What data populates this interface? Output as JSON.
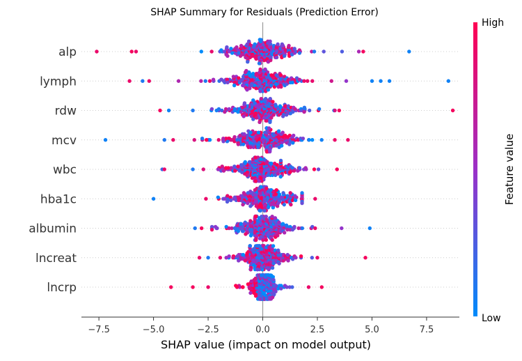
{
  "chart_data": {
    "type": "scatter",
    "subtype": "shap-beeswarm",
    "title": "SHAP Summary for Residuals (Prediction Error)",
    "xlabel": "SHAP value (impact on model output)",
    "xlim": [
      -8.3,
      9.0
    ],
    "x_ticks": [
      -7.5,
      -5.0,
      -2.5,
      0.0,
      2.5,
      5.0,
      7.5
    ],
    "x_tick_labels": [
      "−7.5",
      "−5.0",
      "−2.5",
      "0.0",
      "2.5",
      "5.0",
      "7.5"
    ],
    "features": [
      "alp",
      "lymph",
      "rdw",
      "mcv",
      "wbc",
      "hba1c",
      "albumin",
      "lncreat",
      "lncrp"
    ],
    "colorbar": {
      "label": "Feature value",
      "high_label": "High",
      "low_label": "Low",
      "high_color": "#ff0052",
      "low_color": "#008bfb"
    },
    "feature_profiles": [
      {
        "name": "alp",
        "sigma": 0.95,
        "min": -7.6,
        "max": 6.7,
        "outliers": [
          [
            -7.6,
            0.9
          ],
          [
            -6.0,
            0.95
          ],
          [
            -5.8,
            0.9
          ],
          [
            4.6,
            0.95
          ],
          [
            6.7,
            0.05
          ]
        ]
      },
      {
        "name": "lymph",
        "sigma": 1.0,
        "min": -6.1,
        "max": 8.5,
        "outliers": [
          [
            -6.1,
            0.9
          ],
          [
            -5.5,
            0.1
          ],
          [
            -5.2,
            0.9
          ],
          [
            5.0,
            0.05
          ],
          [
            5.4,
            0.05
          ],
          [
            5.8,
            0.05
          ],
          [
            8.5,
            0.05
          ]
        ]
      },
      {
        "name": "rdw",
        "sigma": 0.95,
        "min": -4.7,
        "max": 8.7,
        "outliers": [
          [
            -4.7,
            0.95
          ],
          [
            -4.3,
            0.05
          ],
          [
            -3.2,
            0.1
          ],
          [
            3.5,
            0.95
          ],
          [
            8.7,
            0.95
          ]
        ]
      },
      {
        "name": "mcv",
        "sigma": 0.95,
        "min": -7.2,
        "max": 3.9,
        "outliers": [
          [
            -7.2,
            0.05
          ],
          [
            -4.5,
            0.1
          ],
          [
            -4.1,
            0.9
          ],
          [
            3.3,
            0.9
          ],
          [
            3.9,
            0.9
          ]
        ]
      },
      {
        "name": "wbc",
        "sigma": 0.85,
        "min": -4.6,
        "max": 3.4,
        "outliers": [
          [
            -4.6,
            0.2
          ],
          [
            -4.5,
            0.9
          ],
          [
            -3.2,
            0.1
          ],
          [
            3.4,
            0.95
          ]
        ]
      },
      {
        "name": "hba1c",
        "sigma": 0.8,
        "min": -5.0,
        "max": 2.4,
        "outliers": [
          [
            -5.0,
            0.05
          ],
          [
            -2.6,
            0.9
          ],
          [
            2.4,
            0.9
          ]
        ]
      },
      {
        "name": "albumin",
        "sigma": 0.75,
        "min": -3.1,
        "max": 4.9,
        "outliers": [
          [
            -3.1,
            0.1
          ],
          [
            -2.8,
            0.95
          ],
          [
            2.4,
            0.9
          ],
          [
            4.9,
            0.05
          ]
        ]
      },
      {
        "name": "lncreat",
        "sigma": 0.65,
        "min": -2.9,
        "max": 4.7,
        "outliers": [
          [
            -2.9,
            0.9
          ],
          [
            -2.5,
            0.1
          ],
          [
            2.5,
            0.9
          ],
          [
            4.7,
            0.95
          ]
        ]
      },
      {
        "name": "lncrp",
        "sigma": 0.35,
        "min": -4.2,
        "max": 2.7,
        "outliers": [
          [
            -4.2,
            0.95
          ],
          [
            -3.2,
            0.95
          ],
          [
            -2.5,
            0.9
          ],
          [
            2.1,
            0.9
          ],
          [
            2.7,
            0.95
          ]
        ]
      }
    ]
  }
}
